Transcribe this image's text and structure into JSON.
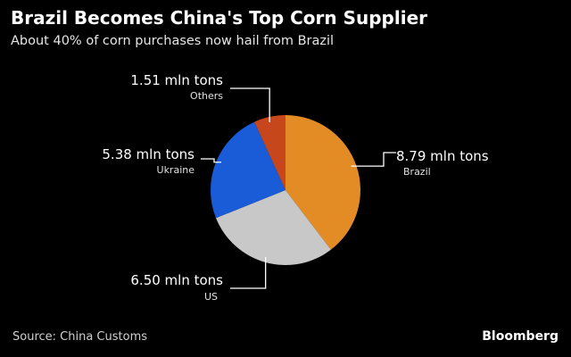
{
  "chart_data": {
    "type": "pie",
    "title": "Brazil Becomes China's Top Corn Supplier",
    "subtitle": "About 40% of corn purchases now hail from Brazil",
    "slices": [
      {
        "label": "Brazil",
        "value": 8.79,
        "value_label": "8.79 mln tons",
        "color": "#e38b24"
      },
      {
        "label": "US",
        "value": 6.5,
        "value_label": "6.50 mln tons",
        "color": "#c8c8c8"
      },
      {
        "label": "Ukraine",
        "value": 5.38,
        "value_label": "5.38 mln tons",
        "color": "#1a5bd8"
      },
      {
        "label": "Others",
        "value": 1.51,
        "value_label": "1.51 mln tons",
        "color": "#c8461c"
      }
    ],
    "start": "12 o'clock",
    "direction": "clockwise",
    "source": "Source: China Customs"
  },
  "brand": "Bloomberg"
}
